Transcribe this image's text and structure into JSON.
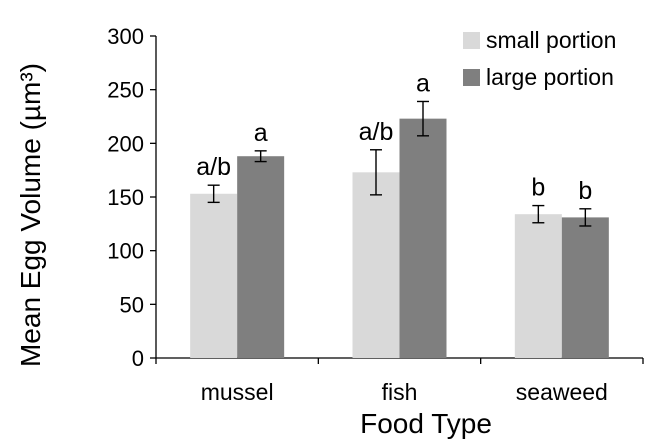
{
  "chart_data": {
    "type": "bar",
    "title": "",
    "xlabel": "Food Type",
    "ylabel": "Mean Egg Volume (µm³)",
    "ylim": [
      0,
      300
    ],
    "yticks": [
      0,
      50,
      100,
      150,
      200,
      250,
      300
    ],
    "categories": [
      "mussel",
      "fish",
      "seaweed"
    ],
    "series": [
      {
        "name": "small portion",
        "color": "#d9d9d9",
        "values": [
          153,
          173,
          134
        ],
        "error": [
          8,
          21,
          8
        ],
        "significance": [
          "a/b",
          "a/b",
          "b"
        ]
      },
      {
        "name": "large portion",
        "color": "#7f7f7f",
        "values": [
          188,
          223,
          131
        ],
        "error": [
          5,
          16,
          8
        ],
        "significance": [
          "a",
          "a",
          "b"
        ]
      }
    ],
    "legend_position": "top-right",
    "grid": false
  }
}
